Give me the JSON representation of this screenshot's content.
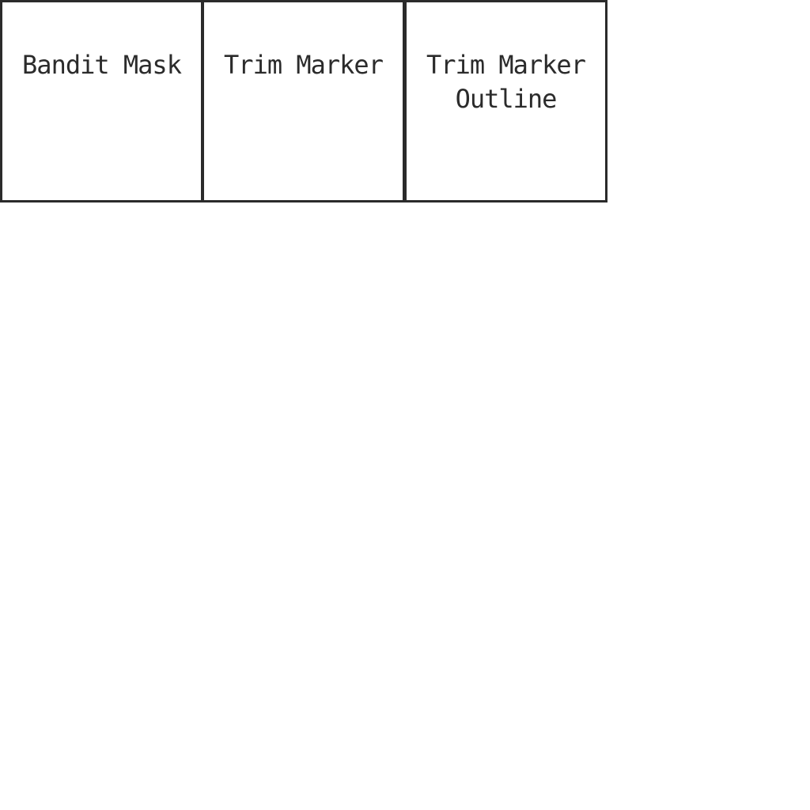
{
  "tiles": [
    {
      "label": "Bandit Mask"
    },
    {
      "label": "Trim Marker"
    },
    {
      "label": "Trim Marker Outline"
    }
  ]
}
